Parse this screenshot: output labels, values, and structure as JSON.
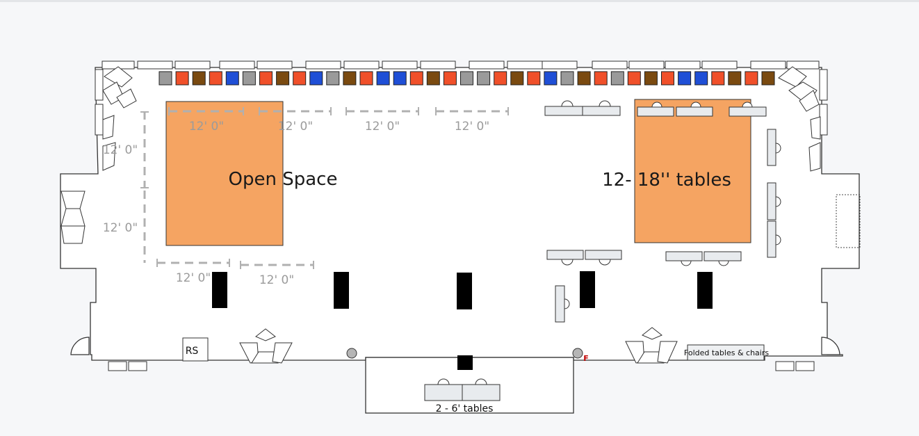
{
  "floorplan": {
    "labels": {
      "open_space": "Open Space",
      "tables_area": "12- 18'' tables",
      "six_foot_tables": "2 - 6' tables",
      "folded": "Folded tables & chairs",
      "rs": "RS",
      "f": "F"
    },
    "dimensions": {
      "top_1": "12' 0\"",
      "top_2": "12' 0\"",
      "top_3": "12' 0\"",
      "top_4": "12' 0\"",
      "left_1": "12' 0\"",
      "left_2": "12' 0\"",
      "bottom_1": "12' 0\"",
      "bottom_2": "12' 0\""
    },
    "colors": {
      "area_fill": "#f5a462",
      "chair_gray": "#9a9a9a",
      "chair_red": "#f0502a",
      "chair_brown": "#7a4a10",
      "chair_blue": "#1f4fd6",
      "pillar": "#000000",
      "wall": "#333333",
      "dimension": "#b0b0b0"
    },
    "chair_sequence": [
      "gray",
      "red",
      "brown",
      "red",
      "blue",
      "gray",
      "red",
      "brown",
      "red",
      "blue",
      "gray",
      "brown",
      "red",
      "blue",
      "blue",
      "red",
      "brown",
      "red",
      "gray",
      "gray",
      "red",
      "brown",
      "red",
      "blue",
      "gray",
      "brown",
      "red",
      "gray",
      "red",
      "brown",
      "red",
      "blue",
      "blue",
      "red",
      "brown",
      "red",
      "brown"
    ]
  }
}
